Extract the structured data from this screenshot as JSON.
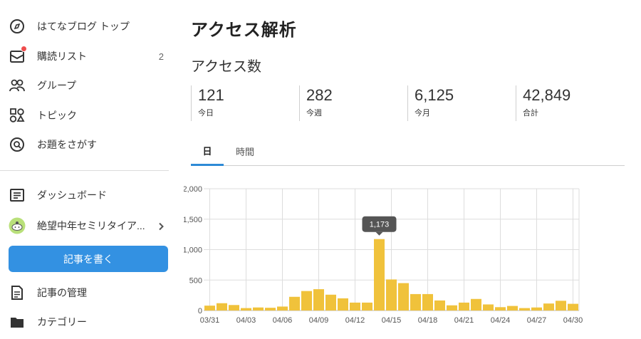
{
  "sidebar": {
    "items": [
      {
        "label": "はてなブログ トップ",
        "icon": "compass-icon"
      },
      {
        "label": "購読リスト",
        "icon": "mail-subscription-icon",
        "count": "2",
        "badge_color": "#ef4d4d"
      },
      {
        "label": "グループ",
        "icon": "group-icon"
      },
      {
        "label": "トピック",
        "icon": "topic-icon"
      },
      {
        "label": "お題をさがす",
        "icon": "theme-search-icon"
      },
      {
        "label": "ダッシュボード",
        "icon": "dashboard-icon"
      },
      {
        "label": "絶望中年セミリタイア...",
        "icon": "blog-avatar-icon"
      },
      {
        "label": "記事の管理",
        "icon": "document-icon"
      },
      {
        "label": "カテゴリー",
        "icon": "folder-icon"
      }
    ],
    "write_button": "記事を書く",
    "accent_color": "#3391e2"
  },
  "main": {
    "title": "アクセス解析",
    "section_title": "アクセス数",
    "stats": [
      {
        "value": "121",
        "label": "今日"
      },
      {
        "value": "282",
        "label": "今週"
      },
      {
        "value": "6,125",
        "label": "今月"
      },
      {
        "value": "42,849",
        "label": "合計"
      }
    ],
    "tabs": [
      {
        "label": "日",
        "active": true
      },
      {
        "label": "時間",
        "active": false
      }
    ],
    "tooltip": "1,173"
  },
  "chart_data": {
    "type": "bar",
    "bar_color": "#f0c23b",
    "categories": [
      "03/31",
      "04/01",
      "04/02",
      "04/03",
      "04/04",
      "04/05",
      "04/06",
      "04/07",
      "04/08",
      "04/09",
      "04/10",
      "04/11",
      "04/12",
      "04/13",
      "04/14",
      "04/15",
      "04/16",
      "04/17",
      "04/18",
      "04/19",
      "04/20",
      "04/21",
      "04/22",
      "04/23",
      "04/24",
      "04/25",
      "04/26",
      "04/27",
      "04/28",
      "04/29",
      "04/30"
    ],
    "values": [
      80,
      120,
      90,
      40,
      50,
      45,
      65,
      225,
      320,
      350,
      260,
      200,
      130,
      130,
      1173,
      510,
      450,
      270,
      270,
      165,
      85,
      130,
      190,
      100,
      55,
      75,
      40,
      50,
      115,
      160,
      110
    ],
    "tick_labels": [
      "03/31",
      "04/03",
      "04/06",
      "04/09",
      "04/12",
      "04/15",
      "04/18",
      "04/21",
      "04/24",
      "04/27",
      "04/30"
    ],
    "y_ticks": [
      "0",
      "500",
      "1,000",
      "1,500",
      "2,000"
    ],
    "ylim": [
      0,
      2000
    ],
    "grid": true
  }
}
